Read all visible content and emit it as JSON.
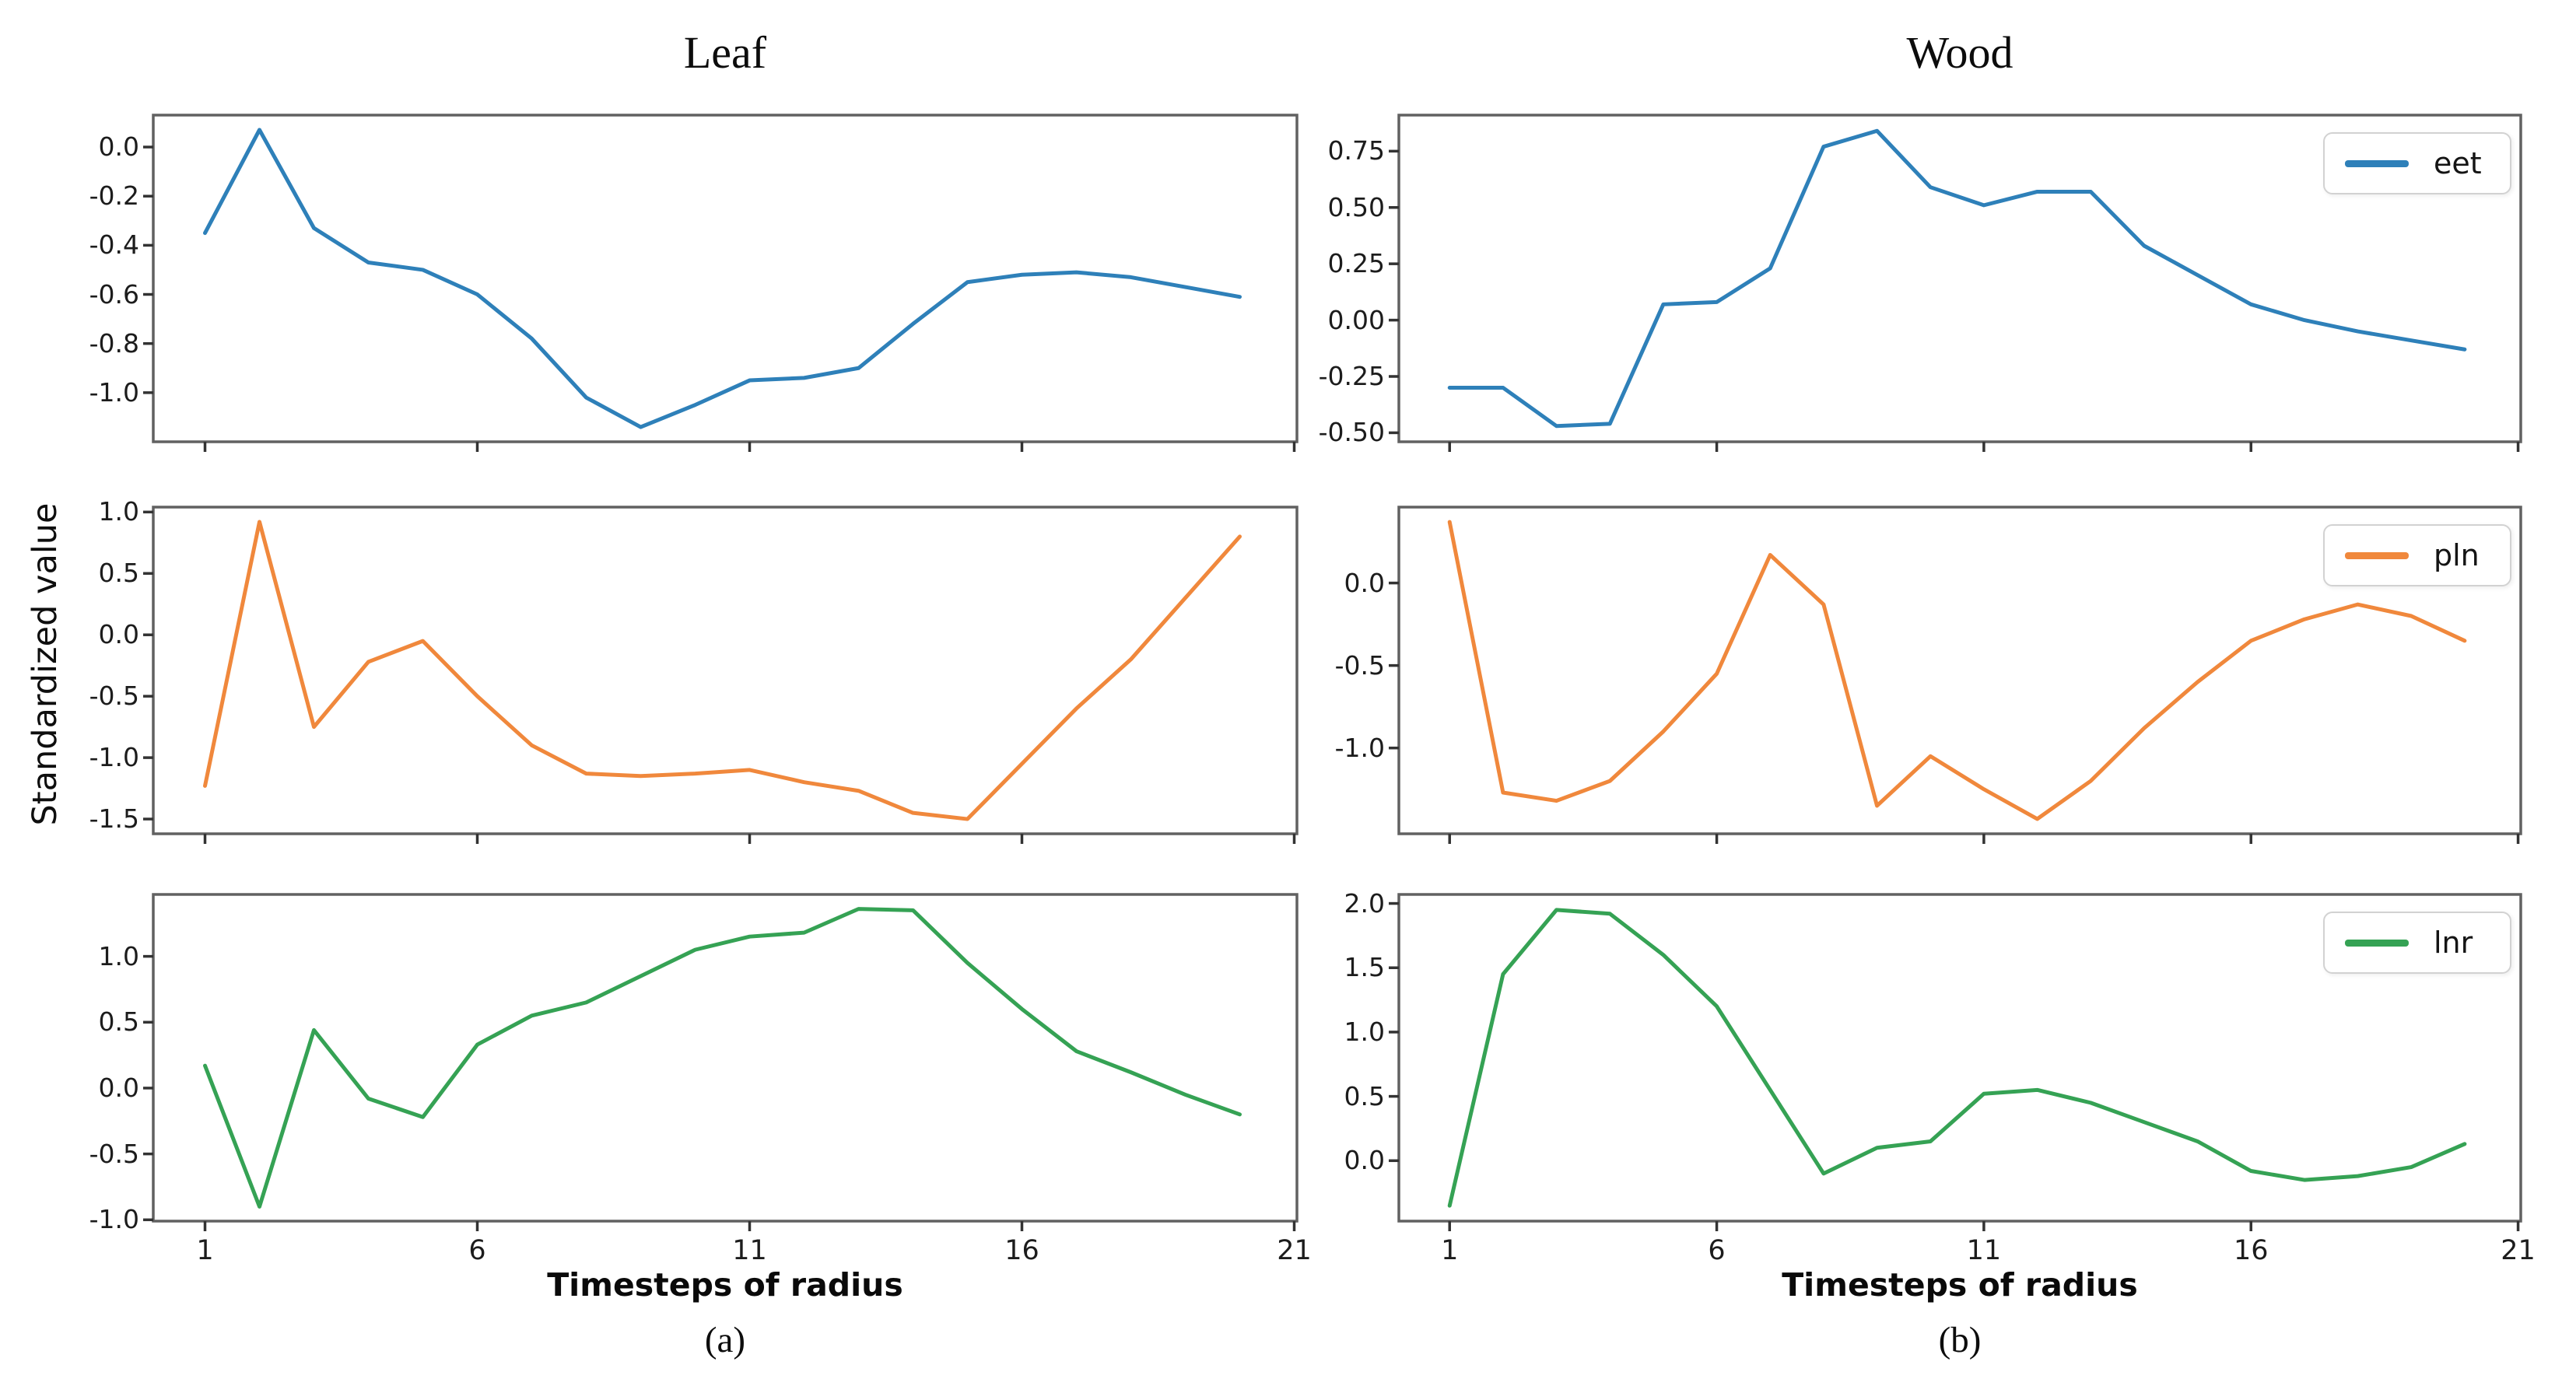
{
  "figure": {
    "ylabel": "Standardized value",
    "columns": [
      {
        "title": "Leaf",
        "xlabel": "Timesteps of radius",
        "caption": "(a)"
      },
      {
        "title": "Wood",
        "xlabel": "Timesteps of radius",
        "caption": "(b)"
      }
    ]
  },
  "colors": {
    "eet": "#2e80b9",
    "pln": "#f0883c",
    "lnr": "#35a254",
    "frame": "#616161",
    "tick_mark": "#333333",
    "tick_text": "#1c1c1c"
  },
  "chart_data": [
    {
      "type": "line",
      "panel": "leaf-eet",
      "column": "left",
      "row": 0,
      "series": "eet",
      "color": "#2e80b9",
      "legend": false,
      "legend_label": "eet",
      "x": [
        1,
        2,
        3,
        4,
        5,
        6,
        7,
        8,
        9,
        10,
        11,
        12,
        13,
        14,
        15,
        16,
        17,
        18,
        19,
        20
      ],
      "y": [
        -0.35,
        0.07,
        -0.33,
        -0.47,
        -0.5,
        -0.6,
        -0.78,
        -1.02,
        -1.14,
        -1.05,
        -0.95,
        -0.94,
        -0.9,
        -0.72,
        -0.55,
        -0.52,
        -0.51,
        -0.53,
        -0.57,
        -0.61
      ],
      "xlim": [
        0.05,
        21.05
      ],
      "ylim": [
        -1.2,
        0.13
      ],
      "xticks": [
        1,
        6,
        11,
        16,
        21
      ],
      "xtick_labels": [
        "1",
        "6",
        "11",
        "16",
        "21"
      ],
      "xtick_labels_visible": false,
      "yticks": [
        0.0,
        -0.2,
        -0.4,
        -0.6,
        -0.8,
        -1.0
      ],
      "ytick_labels": [
        "0.0",
        "-0.2",
        "-0.4",
        "-0.6",
        "-0.8",
        "-1.0"
      ],
      "grid": false
    },
    {
      "type": "line",
      "panel": "wood-eet",
      "column": "right",
      "row": 0,
      "series": "eet",
      "color": "#2e80b9",
      "legend": true,
      "legend_label": "eet",
      "x": [
        1,
        2,
        3,
        4,
        5,
        6,
        7,
        8,
        9,
        10,
        11,
        12,
        13,
        14,
        15,
        16,
        17,
        18,
        19,
        20
      ],
      "y": [
        -0.3,
        -0.3,
        -0.47,
        -0.46,
        0.07,
        0.08,
        0.23,
        0.77,
        0.84,
        0.59,
        0.51,
        0.57,
        0.57,
        0.33,
        0.2,
        0.07,
        0.0,
        -0.05,
        -0.09,
        -0.13
      ],
      "xlim": [
        0.05,
        21.05
      ],
      "ylim": [
        -0.54,
        0.91
      ],
      "xticks": [
        1,
        6,
        11,
        16,
        21
      ],
      "xtick_labels": [
        "1",
        "6",
        "11",
        "16",
        "21"
      ],
      "xtick_labels_visible": false,
      "yticks": [
        0.75,
        0.5,
        0.25,
        0.0,
        -0.25,
        -0.5
      ],
      "ytick_labels": [
        "0.75",
        "0.50",
        "0.25",
        "0.00",
        "-0.25",
        "-0.50"
      ],
      "grid": false
    },
    {
      "type": "line",
      "panel": "leaf-pln",
      "column": "left",
      "row": 1,
      "series": "pln",
      "color": "#f0883c",
      "legend": false,
      "legend_label": "pln",
      "x": [
        1,
        2,
        3,
        4,
        5,
        6,
        7,
        8,
        9,
        10,
        11,
        12,
        13,
        14,
        15,
        16,
        17,
        18,
        19,
        20
      ],
      "y": [
        -1.23,
        0.92,
        -0.75,
        -0.22,
        -0.05,
        -0.5,
        -0.9,
        -1.13,
        -1.15,
        -1.13,
        -1.1,
        -1.2,
        -1.27,
        -1.45,
        -1.5,
        -1.05,
        -0.6,
        -0.2,
        0.3,
        0.8
      ],
      "xlim": [
        0.05,
        21.05
      ],
      "ylim": [
        -1.62,
        1.04
      ],
      "xticks": [
        1,
        6,
        11,
        16,
        21
      ],
      "xtick_labels": [
        "1",
        "6",
        "11",
        "16",
        "21"
      ],
      "xtick_labels_visible": false,
      "yticks": [
        1.0,
        0.5,
        0.0,
        -0.5,
        -1.0,
        -1.5
      ],
      "ytick_labels": [
        "1.0",
        "0.5",
        "0.0",
        "-0.5",
        "-1.0",
        "-1.5"
      ],
      "grid": false
    },
    {
      "type": "line",
      "panel": "wood-pln",
      "column": "right",
      "row": 1,
      "series": "pln",
      "color": "#f0883c",
      "legend": true,
      "legend_label": "pln",
      "x": [
        1,
        2,
        3,
        4,
        5,
        6,
        7,
        8,
        9,
        10,
        11,
        12,
        13,
        14,
        15,
        16,
        17,
        18,
        19,
        20
      ],
      "y": [
        0.37,
        -1.27,
        -1.32,
        -1.2,
        -0.9,
        -0.55,
        0.17,
        -0.13,
        -1.35,
        -1.05,
        -1.25,
        -1.43,
        -1.2,
        -0.88,
        -0.6,
        -0.35,
        -0.22,
        -0.13,
        -0.2,
        -0.35
      ],
      "xlim": [
        0.05,
        21.05
      ],
      "ylim": [
        -1.52,
        0.46
      ],
      "xticks": [
        1,
        6,
        11,
        16,
        21
      ],
      "xtick_labels": [
        "1",
        "6",
        "11",
        "16",
        "21"
      ],
      "xtick_labels_visible": false,
      "yticks": [
        0.0,
        -0.5,
        -1.0
      ],
      "ytick_labels": [
        "0.0",
        "-0.5",
        "-1.0"
      ],
      "grid": false
    },
    {
      "type": "line",
      "panel": "leaf-lnr",
      "column": "left",
      "row": 2,
      "series": "lnr",
      "color": "#35a254",
      "legend": false,
      "legend_label": "lnr",
      "x": [
        1,
        2,
        3,
        4,
        5,
        6,
        7,
        8,
        9,
        10,
        11,
        12,
        13,
        14,
        15,
        16,
        17,
        18,
        19,
        20
      ],
      "y": [
        0.17,
        -0.9,
        0.44,
        -0.08,
        -0.22,
        0.33,
        0.55,
        0.65,
        0.85,
        1.05,
        1.15,
        1.18,
        1.36,
        1.35,
        0.95,
        0.6,
        0.28,
        0.12,
        -0.05,
        -0.2
      ],
      "xlim": [
        0.05,
        21.05
      ],
      "ylim": [
        -1.01,
        1.47
      ],
      "xticks": [
        1,
        6,
        11,
        16,
        21
      ],
      "xtick_labels": [
        "1",
        "6",
        "11",
        "16",
        "21"
      ],
      "xtick_labels_visible": true,
      "yticks": [
        1.0,
        0.5,
        0.0,
        -0.5,
        -1.0
      ],
      "ytick_labels": [
        "1.0",
        "0.5",
        "0.0",
        "-0.5",
        "-1.0"
      ],
      "grid": false
    },
    {
      "type": "line",
      "panel": "wood-lnr",
      "column": "right",
      "row": 2,
      "series": "lnr",
      "color": "#35a254",
      "legend": true,
      "legend_label": "lnr",
      "x": [
        1,
        2,
        3,
        4,
        5,
        6,
        7,
        8,
        9,
        10,
        11,
        12,
        13,
        14,
        15,
        16,
        17,
        18,
        19,
        20
      ],
      "y": [
        -0.35,
        1.45,
        1.95,
        1.92,
        1.6,
        1.2,
        0.55,
        -0.1,
        0.1,
        0.15,
        0.52,
        0.55,
        0.45,
        0.3,
        0.15,
        -0.08,
        -0.15,
        -0.12,
        -0.05,
        0.13
      ],
      "xlim": [
        0.05,
        21.05
      ],
      "ylim": [
        -0.47,
        2.07
      ],
      "xticks": [
        1,
        6,
        11,
        16,
        21
      ],
      "xtick_labels": [
        "1",
        "6",
        "11",
        "16",
        "21"
      ],
      "xtick_labels_visible": true,
      "yticks": [
        2.0,
        1.5,
        1.0,
        0.5,
        0.0
      ],
      "ytick_labels": [
        "2.0",
        "1.5",
        "1.0",
        "0.5",
        "0.0"
      ],
      "grid": false
    }
  ]
}
